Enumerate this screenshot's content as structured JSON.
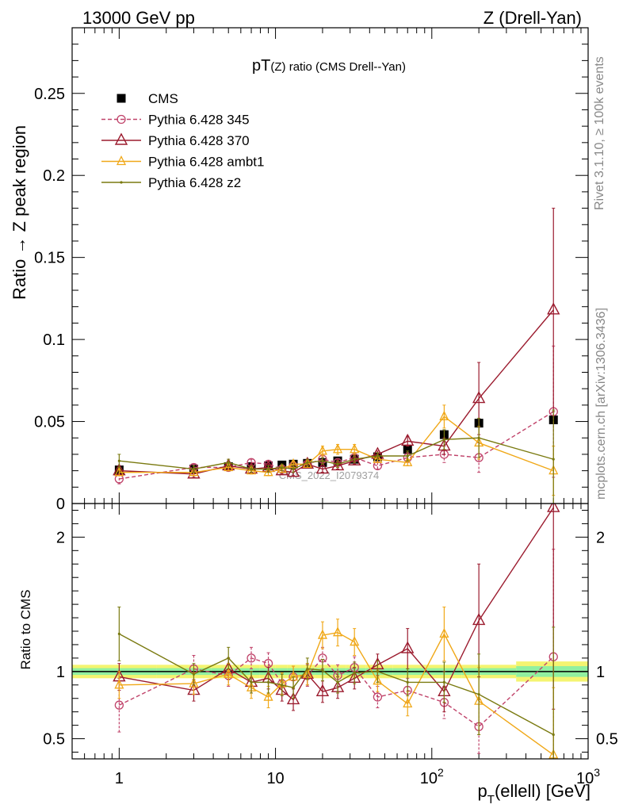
{
  "header": {
    "left": "13000 GeV pp",
    "right": "Z (Drell-Yan)",
    "side_events": "Rivet 3.1.10, ≥ 100k events",
    "side_ref": "mcplots.cern.ch [arXiv:1306.3436]"
  },
  "chart_data": [
    {
      "type": "line",
      "title": "pT(Z) ratio (CMS Drell--Yan)",
      "ylabel": "Ratio → Z peak region",
      "xlabel": "",
      "xscale": "log",
      "xlim": [
        0.5,
        1000
      ],
      "ylim": [
        0,
        0.29
      ],
      "yticks": [
        "0",
        "0.05",
        "0.1",
        "0.15",
        "0.2",
        "0.25"
      ],
      "watermark": "CMS_2022_I2079374",
      "legend_position": "top-left",
      "x": [
        1,
        3,
        5,
        7,
        9,
        11,
        13,
        16,
        20,
        25,
        32,
        45,
        70,
        120,
        200,
        600
      ],
      "series": [
        {
          "name": "CMS",
          "color": "#000000",
          "marker": "filled-square",
          "values": [
            0.0205,
            0.021,
            0.0225,
            0.0225,
            0.023,
            0.0235,
            0.024,
            0.0245,
            0.025,
            0.026,
            0.027,
            0.0285,
            0.033,
            0.042,
            0.049,
            0.051
          ]
        },
        {
          "name": "Pythia 6.428 345",
          "color": "#c0436a",
          "marker": "open-circle",
          "dashed": true,
          "values": [
            0.015,
            0.022,
            0.022,
            0.025,
            0.024,
            0.021,
            0.023,
            0.024,
            0.027,
            0.025,
            0.028,
            0.023,
            0.028,
            0.03,
            0.028,
            0.056
          ],
          "errors": [
            0.003,
            0.002,
            0.002,
            0.002,
            0.002,
            0.002,
            0.002,
            0.002,
            0.002,
            0.002,
            0.002,
            0.002,
            0.003,
            0.005,
            0.009,
            0.04
          ]
        },
        {
          "name": "Pythia 6.428 370",
          "color": "#9b1b2e",
          "marker": "open-triangle",
          "values": [
            0.02,
            0.018,
            0.023,
            0.021,
            0.022,
            0.02,
            0.019,
            0.024,
            0.021,
            0.023,
            0.026,
            0.03,
            0.038,
            0.035,
            0.064,
            0.118
          ],
          "errors": [
            0.002,
            0.002,
            0.002,
            0.002,
            0.002,
            0.002,
            0.002,
            0.002,
            0.002,
            0.002,
            0.002,
            0.002,
            0.003,
            0.005,
            0.022,
            0.062
          ]
        },
        {
          "name": "Pythia 6.428 ambt1",
          "color": "#f0a818",
          "marker": "open-triangle-small",
          "values": [
            0.019,
            0.019,
            0.022,
            0.02,
            0.019,
            0.021,
            0.024,
            0.024,
            0.032,
            0.033,
            0.033,
            0.027,
            0.025,
            0.053,
            0.037,
            0.02
          ],
          "errors": [
            0.002,
            0.002,
            0.002,
            0.002,
            0.002,
            0.002,
            0.002,
            0.002,
            0.003,
            0.003,
            0.003,
            0.002,
            0.002,
            0.007,
            0.01,
            0.015
          ]
        },
        {
          "name": "Pythia 6.428 z2",
          "color": "#7a7a10",
          "marker": "dot",
          "values": [
            0.026,
            0.021,
            0.025,
            0.021,
            0.021,
            0.022,
            0.021,
            0.025,
            0.026,
            0.024,
            0.027,
            0.029,
            0.029,
            0.039,
            0.04,
            0.027
          ],
          "errors": [
            0.004,
            0.002,
            0.002,
            0.002,
            0.002,
            0.002,
            0.002,
            0.002,
            0.002,
            0.002,
            0.002,
            0.002,
            0.003,
            0.006,
            0.012,
            0.03
          ]
        }
      ]
    },
    {
      "type": "line",
      "title": "",
      "ylabel": "Ratio to CMS",
      "xlabel": "p_T(ellell) [GeV]",
      "xlabel_main": "p",
      "xlabel_sub": "T",
      "xlabel_rest": "(ellell) [GeV]",
      "xscale": "log",
      "xlim": [
        0.5,
        1000
      ],
      "xticks": [
        {
          "v": 1,
          "base": "1",
          "exp": ""
        },
        {
          "v": 10,
          "base": "10",
          "exp": ""
        },
        {
          "v": 100,
          "base": "10",
          "exp": "2"
        },
        {
          "v": 1000,
          "base": "10",
          "exp": "3"
        }
      ],
      "ylim": [
        0.35,
        2.25
      ],
      "yticks": [
        "0.5",
        "1",
        "2"
      ],
      "reference": 1,
      "x": [
        1,
        3,
        5,
        7,
        9,
        11,
        13,
        16,
        20,
        25,
        32,
        45,
        70,
        120,
        200,
        600
      ],
      "series": [
        {
          "name": "Pythia 6.428 345",
          "color": "#c0436a",
          "dashed": true,
          "values": [
            0.75,
            1.02,
            0.97,
            1.1,
            1.06,
            0.91,
            0.96,
            0.97,
            1.1,
            0.97,
            1.03,
            0.81,
            0.86,
            0.77,
            0.59,
            1.11
          ],
          "errors": [
            0.2,
            0.1,
            0.08,
            0.08,
            0.08,
            0.08,
            0.08,
            0.08,
            0.08,
            0.08,
            0.08,
            0.08,
            0.09,
            0.12,
            0.2,
            0.8
          ]
        },
        {
          "name": "Pythia 6.428 370",
          "color": "#9b1b2e",
          "values": [
            0.96,
            0.86,
            1.02,
            0.92,
            0.95,
            0.86,
            0.79,
            0.98,
            0.85,
            0.88,
            0.95,
            1.05,
            1.17,
            0.85,
            1.38,
            2.22
          ],
          "errors": [
            0.1,
            0.08,
            0.08,
            0.08,
            0.08,
            0.08,
            0.08,
            0.08,
            0.08,
            0.08,
            0.08,
            0.08,
            0.15,
            0.15,
            0.42,
            1.5
          ]
        },
        {
          "name": "Pythia 6.428 ambt1",
          "color": "#f0a818",
          "values": [
            0.9,
            0.91,
            0.98,
            0.88,
            0.81,
            0.91,
            0.96,
            0.98,
            1.27,
            1.29,
            1.22,
            0.93,
            0.76,
            1.28,
            0.78,
            0.38
          ],
          "errors": [
            0.1,
            0.08,
            0.08,
            0.08,
            0.08,
            0.08,
            0.08,
            0.08,
            0.1,
            0.1,
            0.1,
            0.08,
            0.09,
            0.2,
            0.25,
            0.5
          ]
        },
        {
          "name": "Pythia 6.428 z2",
          "color": "#7a7a10",
          "values": [
            1.28,
            0.98,
            1.1,
            0.92,
            0.92,
            0.9,
            0.88,
            1.02,
            1.01,
            0.92,
            0.99,
            1.0,
            0.92,
            0.92,
            0.83,
            0.53
          ],
          "errors": [
            0.2,
            0.08,
            0.08,
            0.08,
            0.08,
            0.08,
            0.08,
            0.08,
            0.08,
            0.08,
            0.08,
            0.08,
            0.1,
            0.15,
            0.3,
            0.8
          ]
        }
      ]
    }
  ]
}
